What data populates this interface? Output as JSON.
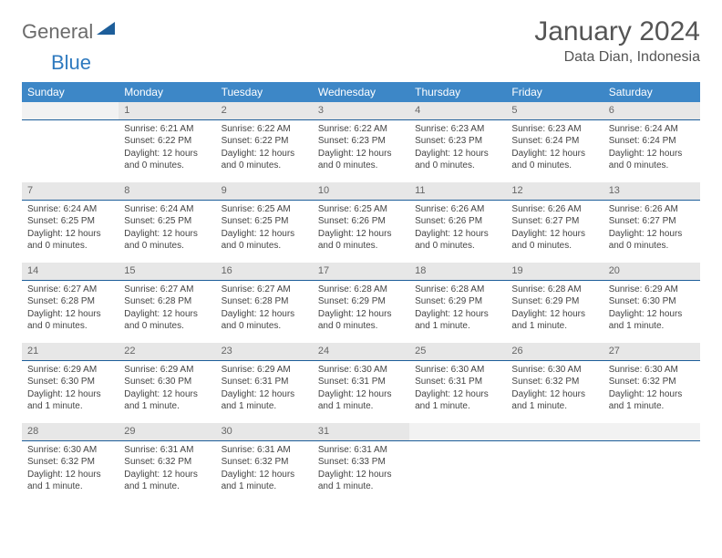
{
  "logo": {
    "part1": "General",
    "part2": "Blue"
  },
  "title": {
    "month": "January 2024",
    "location": "Data Dian, Indonesia"
  },
  "style": {
    "header_bg": "#3d87c7",
    "header_text": "#ffffff",
    "daynum_bg": "#e7e7e7",
    "daynum_border": "#1d5e9a",
    "body_text": "#444444",
    "page_bg": "#ffffff",
    "title_fontsize": 30,
    "location_fontsize": 16,
    "cell_fontsize": 10,
    "header_fontsize": 12
  },
  "weekdays": [
    "Sunday",
    "Monday",
    "Tuesday",
    "Wednesday",
    "Thursday",
    "Friday",
    "Saturday"
  ],
  "weeks": [
    [
      null,
      {
        "n": "1",
        "sr": "Sunrise: 6:21 AM",
        "ss": "Sunset: 6:22 PM",
        "d1": "Daylight: 12 hours",
        "d2": "and 0 minutes."
      },
      {
        "n": "2",
        "sr": "Sunrise: 6:22 AM",
        "ss": "Sunset: 6:22 PM",
        "d1": "Daylight: 12 hours",
        "d2": "and 0 minutes."
      },
      {
        "n": "3",
        "sr": "Sunrise: 6:22 AM",
        "ss": "Sunset: 6:23 PM",
        "d1": "Daylight: 12 hours",
        "d2": "and 0 minutes."
      },
      {
        "n": "4",
        "sr": "Sunrise: 6:23 AM",
        "ss": "Sunset: 6:23 PM",
        "d1": "Daylight: 12 hours",
        "d2": "and 0 minutes."
      },
      {
        "n": "5",
        "sr": "Sunrise: 6:23 AM",
        "ss": "Sunset: 6:24 PM",
        "d1": "Daylight: 12 hours",
        "d2": "and 0 minutes."
      },
      {
        "n": "6",
        "sr": "Sunrise: 6:24 AM",
        "ss": "Sunset: 6:24 PM",
        "d1": "Daylight: 12 hours",
        "d2": "and 0 minutes."
      }
    ],
    [
      {
        "n": "7",
        "sr": "Sunrise: 6:24 AM",
        "ss": "Sunset: 6:25 PM",
        "d1": "Daylight: 12 hours",
        "d2": "and 0 minutes."
      },
      {
        "n": "8",
        "sr": "Sunrise: 6:24 AM",
        "ss": "Sunset: 6:25 PM",
        "d1": "Daylight: 12 hours",
        "d2": "and 0 minutes."
      },
      {
        "n": "9",
        "sr": "Sunrise: 6:25 AM",
        "ss": "Sunset: 6:25 PM",
        "d1": "Daylight: 12 hours",
        "d2": "and 0 minutes."
      },
      {
        "n": "10",
        "sr": "Sunrise: 6:25 AM",
        "ss": "Sunset: 6:26 PM",
        "d1": "Daylight: 12 hours",
        "d2": "and 0 minutes."
      },
      {
        "n": "11",
        "sr": "Sunrise: 6:26 AM",
        "ss": "Sunset: 6:26 PM",
        "d1": "Daylight: 12 hours",
        "d2": "and 0 minutes."
      },
      {
        "n": "12",
        "sr": "Sunrise: 6:26 AM",
        "ss": "Sunset: 6:27 PM",
        "d1": "Daylight: 12 hours",
        "d2": "and 0 minutes."
      },
      {
        "n": "13",
        "sr": "Sunrise: 6:26 AM",
        "ss": "Sunset: 6:27 PM",
        "d1": "Daylight: 12 hours",
        "d2": "and 0 minutes."
      }
    ],
    [
      {
        "n": "14",
        "sr": "Sunrise: 6:27 AM",
        "ss": "Sunset: 6:28 PM",
        "d1": "Daylight: 12 hours",
        "d2": "and 0 minutes."
      },
      {
        "n": "15",
        "sr": "Sunrise: 6:27 AM",
        "ss": "Sunset: 6:28 PM",
        "d1": "Daylight: 12 hours",
        "d2": "and 0 minutes."
      },
      {
        "n": "16",
        "sr": "Sunrise: 6:27 AM",
        "ss": "Sunset: 6:28 PM",
        "d1": "Daylight: 12 hours",
        "d2": "and 0 minutes."
      },
      {
        "n": "17",
        "sr": "Sunrise: 6:28 AM",
        "ss": "Sunset: 6:29 PM",
        "d1": "Daylight: 12 hours",
        "d2": "and 0 minutes."
      },
      {
        "n": "18",
        "sr": "Sunrise: 6:28 AM",
        "ss": "Sunset: 6:29 PM",
        "d1": "Daylight: 12 hours",
        "d2": "and 1 minute."
      },
      {
        "n": "19",
        "sr": "Sunrise: 6:28 AM",
        "ss": "Sunset: 6:29 PM",
        "d1": "Daylight: 12 hours",
        "d2": "and 1 minute."
      },
      {
        "n": "20",
        "sr": "Sunrise: 6:29 AM",
        "ss": "Sunset: 6:30 PM",
        "d1": "Daylight: 12 hours",
        "d2": "and 1 minute."
      }
    ],
    [
      {
        "n": "21",
        "sr": "Sunrise: 6:29 AM",
        "ss": "Sunset: 6:30 PM",
        "d1": "Daylight: 12 hours",
        "d2": "and 1 minute."
      },
      {
        "n": "22",
        "sr": "Sunrise: 6:29 AM",
        "ss": "Sunset: 6:30 PM",
        "d1": "Daylight: 12 hours",
        "d2": "and 1 minute."
      },
      {
        "n": "23",
        "sr": "Sunrise: 6:29 AM",
        "ss": "Sunset: 6:31 PM",
        "d1": "Daylight: 12 hours",
        "d2": "and 1 minute."
      },
      {
        "n": "24",
        "sr": "Sunrise: 6:30 AM",
        "ss": "Sunset: 6:31 PM",
        "d1": "Daylight: 12 hours",
        "d2": "and 1 minute."
      },
      {
        "n": "25",
        "sr": "Sunrise: 6:30 AM",
        "ss": "Sunset: 6:31 PM",
        "d1": "Daylight: 12 hours",
        "d2": "and 1 minute."
      },
      {
        "n": "26",
        "sr": "Sunrise: 6:30 AM",
        "ss": "Sunset: 6:32 PM",
        "d1": "Daylight: 12 hours",
        "d2": "and 1 minute."
      },
      {
        "n": "27",
        "sr": "Sunrise: 6:30 AM",
        "ss": "Sunset: 6:32 PM",
        "d1": "Daylight: 12 hours",
        "d2": "and 1 minute."
      }
    ],
    [
      {
        "n": "28",
        "sr": "Sunrise: 6:30 AM",
        "ss": "Sunset: 6:32 PM",
        "d1": "Daylight: 12 hours",
        "d2": "and 1 minute."
      },
      {
        "n": "29",
        "sr": "Sunrise: 6:31 AM",
        "ss": "Sunset: 6:32 PM",
        "d1": "Daylight: 12 hours",
        "d2": "and 1 minute."
      },
      {
        "n": "30",
        "sr": "Sunrise: 6:31 AM",
        "ss": "Sunset: 6:32 PM",
        "d1": "Daylight: 12 hours",
        "d2": "and 1 minute."
      },
      {
        "n": "31",
        "sr": "Sunrise: 6:31 AM",
        "ss": "Sunset: 6:33 PM",
        "d1": "Daylight: 12 hours",
        "d2": "and 1 minute."
      },
      null,
      null,
      null
    ]
  ]
}
